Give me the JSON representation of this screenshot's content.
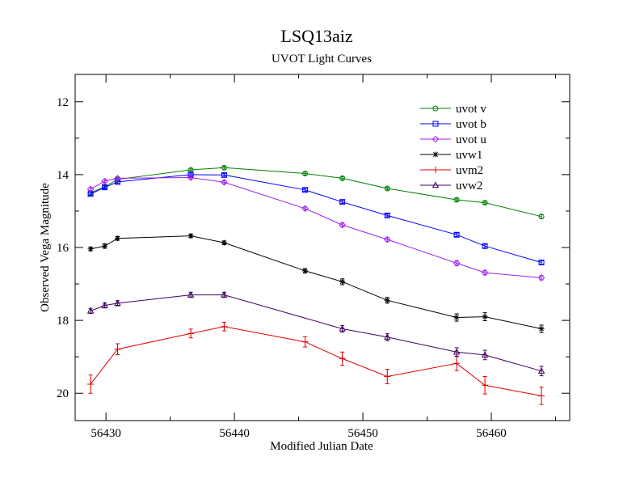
{
  "chart_data": {
    "type": "line",
    "title": "LSQ13aiz",
    "subtitle": "UVOT Light Curves",
    "xlabel": "Modified Julian Date",
    "ylabel": "Observed Vega Magnitude",
    "xlim": [
      56427.6,
      56466.1
    ],
    "ylim": [
      20.75,
      11.25
    ],
    "y_inverted": true,
    "x_ticks": [
      56430,
      56440,
      56450,
      56460
    ],
    "x_tick_labels": [
      "56430",
      "56440",
      "56450",
      "56460"
    ],
    "y_ticks": [
      12,
      14,
      16,
      18,
      20
    ],
    "y_tick_labels": [
      "12",
      "14",
      "16",
      "18",
      "20"
    ],
    "legend_position": "top-right",
    "grid": false,
    "series": [
      {
        "name": "uvot v",
        "color": "#008000",
        "marker": "circle",
        "x": [
          56428.8,
          56429.9,
          56430.9,
          56436.6,
          56439.2,
          56445.5,
          56448.4,
          56451.9,
          56457.3,
          56459.5,
          56463.9
        ],
        "y": [
          14.5,
          14.33,
          14.13,
          13.87,
          13.81,
          13.97,
          14.1,
          14.38,
          14.69,
          14.77,
          15.15
        ],
        "err": [
          0.04,
          0.04,
          0.04,
          0.04,
          0.04,
          0.04,
          0.04,
          0.04,
          0.04,
          0.04,
          0.05
        ]
      },
      {
        "name": "uvot b",
        "color": "#0000ff",
        "marker": "square",
        "x": [
          56428.8,
          56429.9,
          56430.9,
          56436.6,
          56439.2,
          56445.5,
          56448.4,
          56451.9,
          56457.3,
          56459.5,
          56463.9
        ],
        "y": [
          14.53,
          14.35,
          14.2,
          14.0,
          14.01,
          14.42,
          14.75,
          15.12,
          15.65,
          15.96,
          16.41
        ],
        "err": [
          0.04,
          0.04,
          0.04,
          0.04,
          0.04,
          0.04,
          0.04,
          0.04,
          0.05,
          0.05,
          0.05
        ]
      },
      {
        "name": "uvot u",
        "color": "#a020f0",
        "marker": "diamond",
        "x": [
          56428.8,
          56429.9,
          56430.9,
          56436.6,
          56439.2,
          56445.5,
          56448.4,
          56451.9,
          56457.3,
          56459.5,
          56463.9
        ],
        "y": [
          14.4,
          14.18,
          14.1,
          14.08,
          14.21,
          14.93,
          15.38,
          15.78,
          16.43,
          16.69,
          16.83
        ],
        "err": [
          0.04,
          0.04,
          0.04,
          0.04,
          0.04,
          0.04,
          0.05,
          0.05,
          0.07,
          0.06,
          0.06
        ]
      },
      {
        "name": "uvw1",
        "color": "#000000",
        "marker": "star",
        "x": [
          56428.8,
          56429.9,
          56430.9,
          56436.6,
          56439.2,
          56445.5,
          56448.4,
          56451.9,
          56457.3,
          56459.5,
          56463.9
        ],
        "y": [
          16.04,
          15.96,
          15.75,
          15.68,
          15.87,
          16.64,
          16.94,
          17.45,
          17.92,
          17.9,
          18.23
        ],
        "err": [
          0.05,
          0.06,
          0.05,
          0.05,
          0.05,
          0.06,
          0.08,
          0.08,
          0.1,
          0.11,
          0.1
        ]
      },
      {
        "name": "uvm2",
        "color": "#e00000",
        "marker": "plus",
        "x": [
          56428.8,
          56430.9,
          56436.6,
          56439.2,
          56445.5,
          56448.4,
          56451.9,
          56457.3,
          56459.5,
          56463.9
        ],
        "y": [
          19.75,
          18.79,
          18.36,
          18.17,
          18.59,
          19.05,
          19.54,
          19.18,
          19.78,
          20.07
        ],
        "err": [
          0.25,
          0.15,
          0.12,
          0.12,
          0.14,
          0.18,
          0.2,
          0.2,
          0.24,
          0.24
        ]
      },
      {
        "name": "uvw2",
        "color": "#400060",
        "marker": "triangle",
        "x": [
          56428.8,
          56429.9,
          56430.9,
          56436.6,
          56439.2,
          56448.4,
          56451.9,
          56457.3,
          56459.5,
          56463.9
        ],
        "y": [
          17.74,
          17.59,
          17.53,
          17.3,
          17.3,
          18.23,
          18.46,
          18.87,
          18.95,
          19.39
        ],
        "err": [
          0.07,
          0.07,
          0.07,
          0.07,
          0.07,
          0.09,
          0.1,
          0.12,
          0.13,
          0.13
        ]
      }
    ]
  }
}
